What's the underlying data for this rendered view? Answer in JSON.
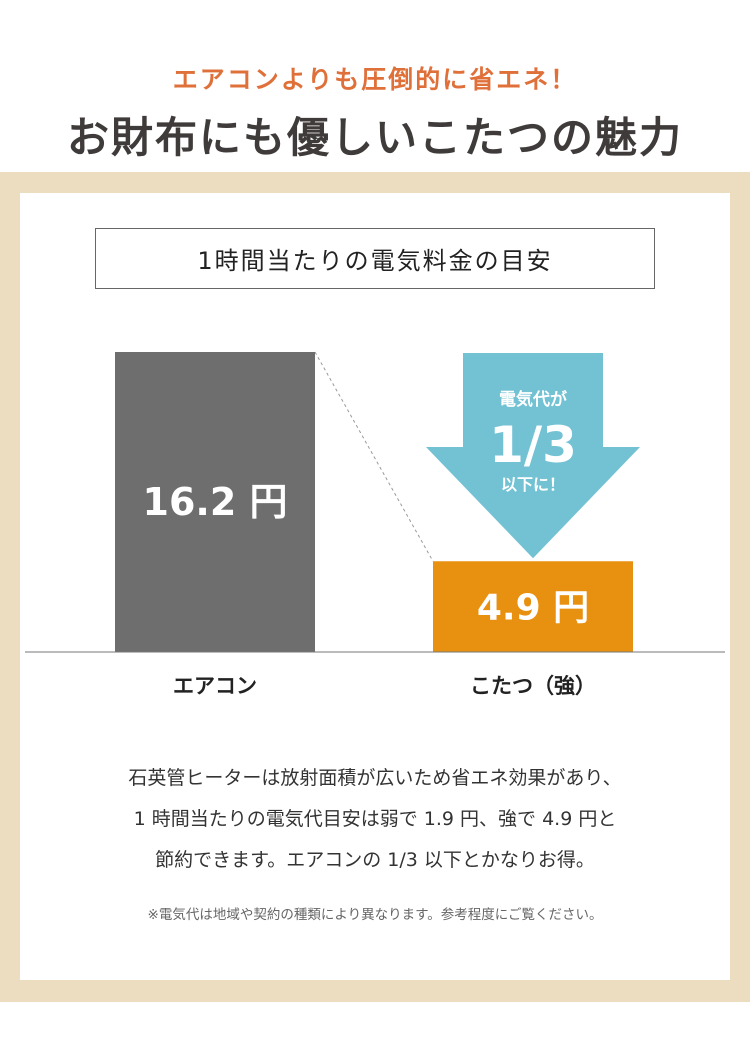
{
  "header": {
    "subtitle": "エアコンよりも圧倒的に省エネ！",
    "title": "お財布にも優しいこたつの魅力"
  },
  "colors": {
    "subtitle": "#e0703a",
    "title": "#3f3b3a",
    "band": "#ecdcc0",
    "aircon_bar": "#6e6e6e",
    "kotatsu_bar": "#e8900f",
    "arrow": "#72c2d4"
  },
  "chart_data": {
    "type": "bar",
    "title": "1時間当たりの電気料金の目安",
    "categories": [
      "エアコン",
      "こたつ（強）"
    ],
    "values": [
      16.2,
      4.9
    ],
    "data_labels": [
      "16.2 円",
      "4.9 円"
    ],
    "unit": "円",
    "annotation": {
      "line1": "電気代が",
      "line2": "1/3",
      "line3": "以下に！"
    }
  },
  "body": {
    "lines": [
      "石英管ヒーターは放射面積が広いため省エネ効果があり、",
      "1 時間当たりの電気代目安は弱で 1.9 円、強で 4.9 円と",
      "節約できます。エアコンの 1/3 以下とかなりお得。"
    ],
    "note": "※電気代は地域や契約の種類により異なります。参考程度にご覧ください。"
  }
}
